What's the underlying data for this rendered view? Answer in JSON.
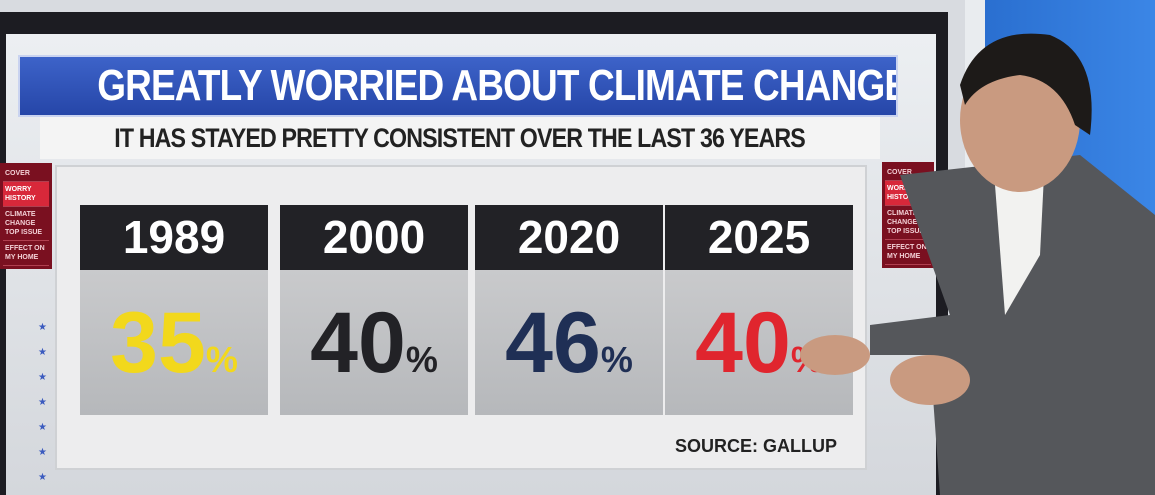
{
  "title": "GREATLY WORRIED ABOUT CLIMATE CHANGE",
  "subtitle": "IT HAS STAYED PRETTY CONSISTENT OVER THE LAST 36 YEARS",
  "side_menu": [
    "COVER",
    "WORRY HISTORY",
    "CLIMATE CHANGE TOP ISSUE",
    "EFFECT ON MY HOME"
  ],
  "columns": [
    {
      "year": "1989",
      "value": "35",
      "pct": "%",
      "color": "#f2d81c"
    },
    {
      "year": "2000",
      "value": "40",
      "pct": "%",
      "color": "#222226"
    },
    {
      "year": "2020",
      "value": "46",
      "pct": "%",
      "color": "#1f2f55"
    },
    {
      "year": "2025",
      "value": "40",
      "pct": "%",
      "color": "#e0252e"
    }
  ],
  "source": "SOURCE: GALLUP"
}
